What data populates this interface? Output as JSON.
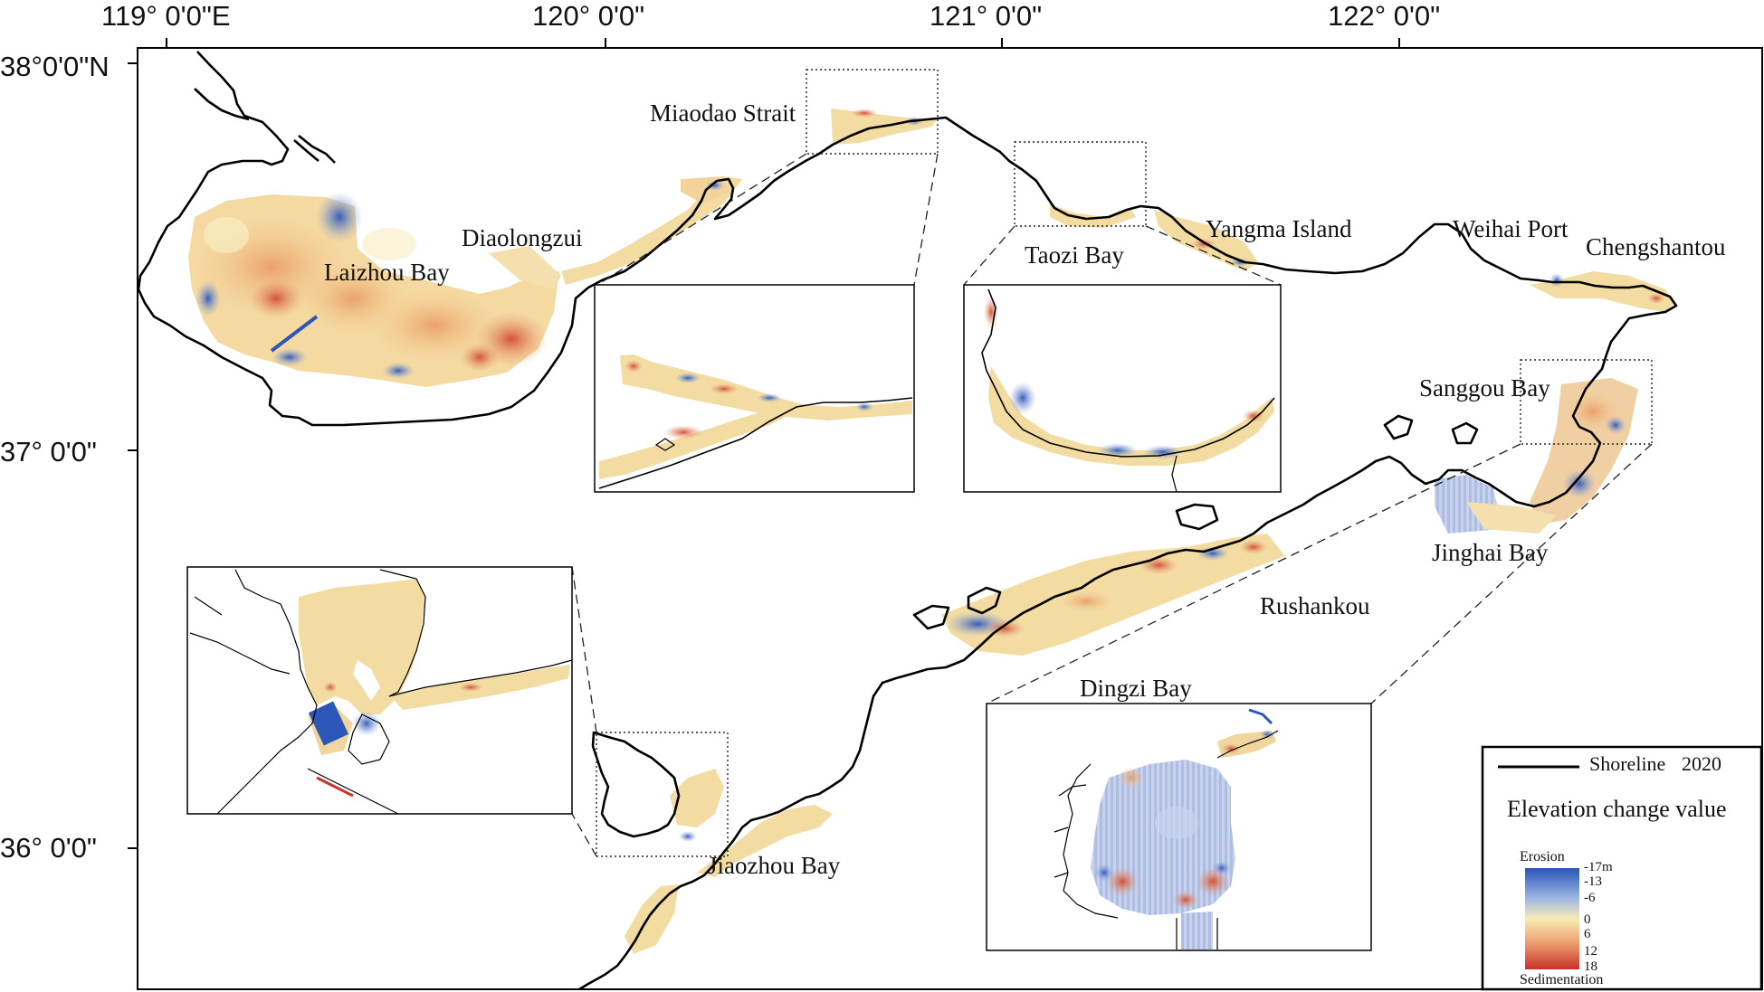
{
  "coordinates": {
    "longitudes": [
      "119° 0'0\"E",
      "120° 0'0\"",
      "121° 0'0\"",
      "122° 0'0\""
    ],
    "latitudes": [
      "38°0'0\"N",
      "37° 0'0\"",
      "36° 0'0\""
    ]
  },
  "places": {
    "laizhou_bay": "Laizhou Bay",
    "diaolongzui": "Diaolongzui",
    "miaodao_strait": "Miaodao Strait",
    "taozi_bay": "Taozi Bay",
    "yangma_island": "Yangma Island",
    "weihai_port": "Weihai Port",
    "chengshantou": "Chengshantou",
    "sanggou_bay": "Sanggou Bay",
    "jinghai_bay": "Jinghai Bay",
    "rushankou": "Rushankou",
    "dingzi_bay": "Dingzi Bay",
    "jiaozhou_bay": "Jiaozhou Bay"
  },
  "legend": {
    "shoreline_label": "Shoreline",
    "shoreline_year": "2020",
    "title": "Elevation change value",
    "erosion_label": "Erosion",
    "sedimentation_label": "Sedimentation",
    "ticks": [
      "-17m",
      "-13",
      "-6",
      "0",
      "6",
      "12",
      "18"
    ],
    "colors": {
      "erosion": "#2a55b8",
      "neutral": "#f7ecb5",
      "sedimentation": "#c8322a",
      "shoreline": "#000000"
    }
  }
}
